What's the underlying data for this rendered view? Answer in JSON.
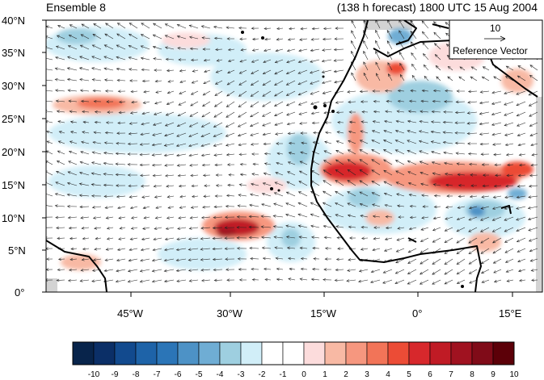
{
  "header": {
    "left_title": "Ensemble 8",
    "right_title": "(138 h forecast) 1800 UTC 15 Aug 2004"
  },
  "map": {
    "lat_labels": [
      "40°N",
      "35°N",
      "30°N",
      "25°N",
      "20°N",
      "15°N",
      "10°N",
      "5°N",
      "0°"
    ],
    "lon_labels": [
      "45°W",
      "30°W",
      "15°W",
      "0°",
      "15°E"
    ],
    "reference_vector": {
      "magnitude": "10",
      "label": "Reference Vector"
    },
    "colors": {
      "land_mask": "#d3d3d3",
      "coastline": "#000000",
      "arrow": "#000000"
    }
  },
  "colorbar": {
    "labels": [
      "-10",
      "-9",
      "-8",
      "-7",
      "-6",
      "-5",
      "-4",
      "-3",
      "-2",
      "-1",
      "0",
      "1",
      "2",
      "3",
      "4",
      "5",
      "6",
      "7",
      "8",
      "9",
      "10"
    ],
    "colors": [
      "#08244b",
      "#0b2f67",
      "#124a8e",
      "#1e63a8",
      "#2b75b7",
      "#4d92c6",
      "#6fadd4",
      "#9ecfe0",
      "#d1eef8",
      "#ffffff",
      "#ffffff",
      "#fcdcdc",
      "#f8b9a4",
      "#f6977f",
      "#f27458",
      "#ec4c36",
      "#d7282c",
      "#c01b25",
      "#a01220",
      "#800b18",
      "#5c0008"
    ]
  }
}
